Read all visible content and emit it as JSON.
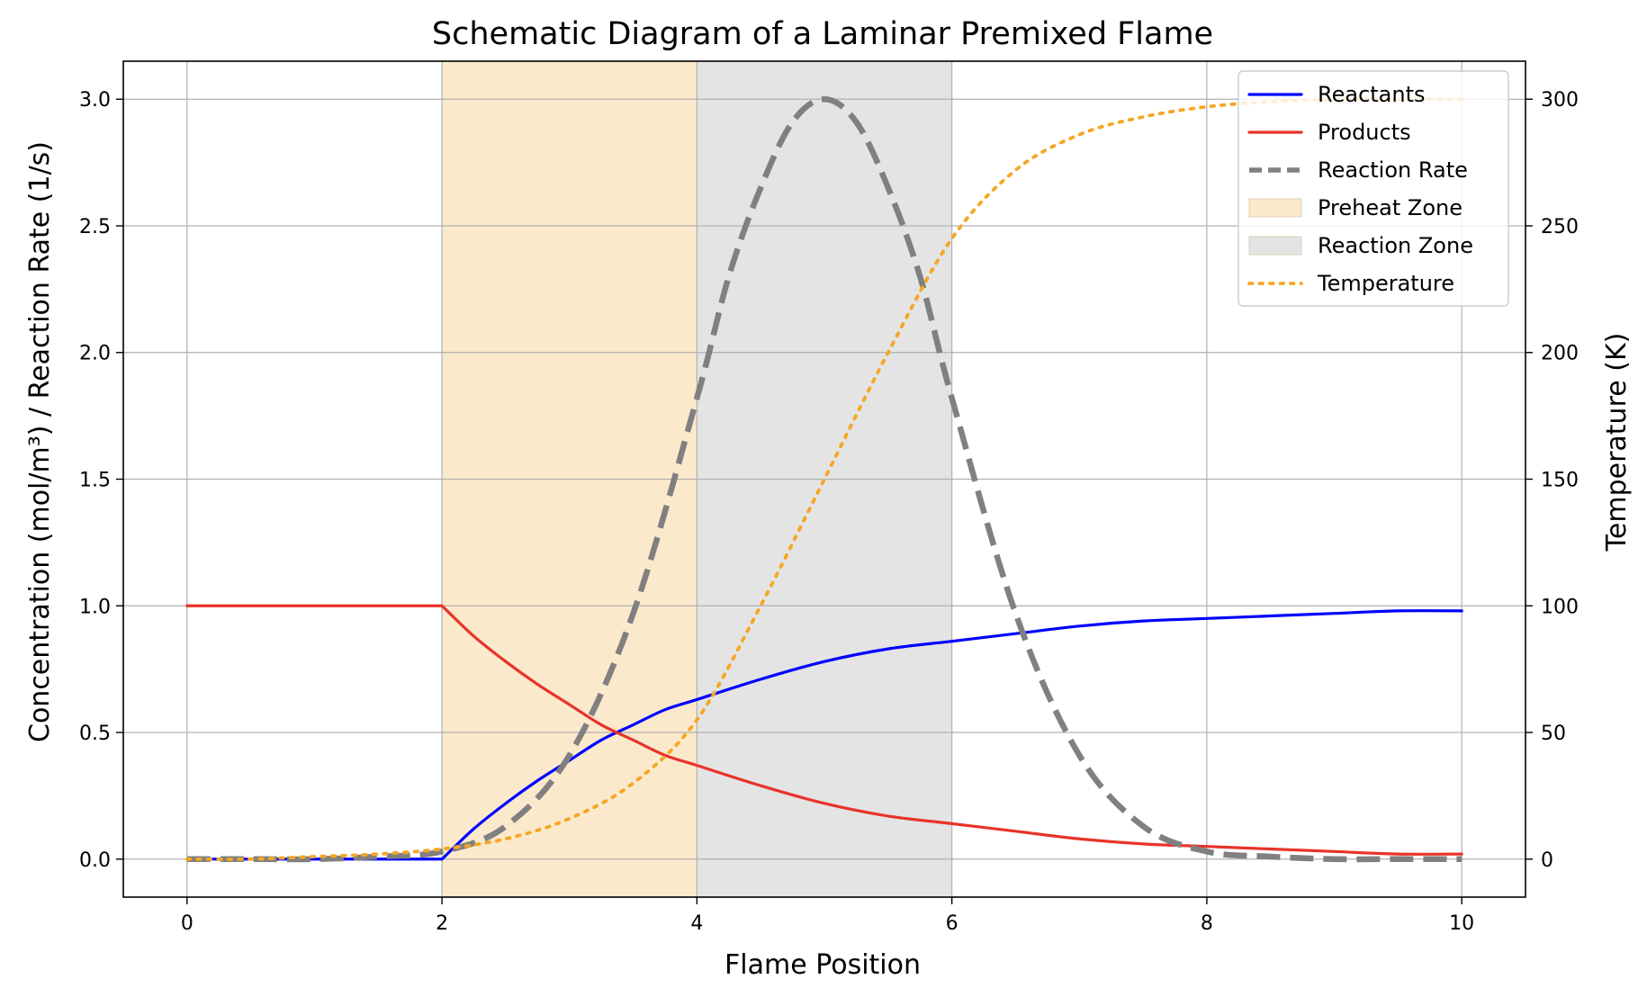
{
  "chart_data": {
    "type": "line",
    "title": "Schematic Diagram of a Laminar Premixed Flame",
    "xlabel": "Flame Position",
    "ylabel": "Concentration (mol/m³) / Reaction Rate (1/s)",
    "y2label": "Temperature (K)",
    "xlim": [
      -0.5,
      10.5
    ],
    "ylim": [
      -0.15,
      3.15
    ],
    "y2lim": [
      -15,
      315
    ],
    "x_ticks": [
      0,
      2,
      4,
      6,
      8,
      10
    ],
    "x_tick_labels": [
      "0",
      "2",
      "4",
      "6",
      "8",
      "10"
    ],
    "y_ticks": [
      0.0,
      0.5,
      1.0,
      1.5,
      2.0,
      2.5,
      3.0
    ],
    "y_tick_labels": [
      "0.0",
      "0.5",
      "1.0",
      "1.5",
      "2.0",
      "2.5",
      "3.0"
    ],
    "y2_ticks": [
      0,
      50,
      100,
      150,
      200,
      250,
      300
    ],
    "y2_tick_labels": [
      "0",
      "50",
      "100",
      "150",
      "200",
      "250",
      "300"
    ],
    "grid": true,
    "legend_position": "top-right",
    "zones": [
      {
        "name": "Preheat Zone",
        "x_start": 2,
        "x_end": 4,
        "color": "#fbe9cc"
      },
      {
        "name": "Reaction Zone",
        "x_start": 4,
        "x_end": 6,
        "color": "#e4e4e4"
      }
    ],
    "series": [
      {
        "name": "Reactants",
        "axis": "left",
        "color": "#0000ff",
        "style": "solid",
        "x": [
          0,
          0.5,
          1,
          1.5,
          2,
          2.25,
          2.5,
          2.75,
          3,
          3.25,
          3.5,
          3.75,
          4,
          4.5,
          5,
          5.5,
          6,
          6.5,
          7,
          7.5,
          8,
          8.5,
          9,
          9.5,
          10
        ],
        "values": [
          0.0,
          0.0,
          0.0,
          0.0,
          0.0,
          0.12,
          0.22,
          0.31,
          0.39,
          0.47,
          0.53,
          0.59,
          0.63,
          0.71,
          0.78,
          0.83,
          0.86,
          0.89,
          0.92,
          0.94,
          0.95,
          0.96,
          0.97,
          0.98,
          0.98
        ]
      },
      {
        "name": "Products",
        "axis": "left",
        "color": "#e8332a",
        "style": "solid",
        "x": [
          0,
          0.5,
          1,
          1.5,
          2,
          2.25,
          2.5,
          2.75,
          3,
          3.25,
          3.5,
          3.75,
          4,
          4.5,
          5,
          5.5,
          6,
          6.5,
          7,
          7.5,
          8,
          8.5,
          9,
          9.5,
          10
        ],
        "values": [
          1.0,
          1.0,
          1.0,
          1.0,
          1.0,
          0.88,
          0.78,
          0.69,
          0.61,
          0.53,
          0.47,
          0.41,
          0.37,
          0.29,
          0.22,
          0.17,
          0.14,
          0.11,
          0.08,
          0.06,
          0.05,
          0.04,
          0.03,
          0.02,
          0.02
        ]
      },
      {
        "name": "Reaction Rate",
        "axis": "left",
        "color": "#808080",
        "style": "dashed",
        "x": [
          0,
          0.5,
          1,
          1.5,
          2,
          2.5,
          3,
          3.5,
          4,
          4.25,
          4.5,
          4.75,
          5,
          5.25,
          5.5,
          5.75,
          6,
          6.5,
          7,
          7.5,
          8,
          8.5,
          9,
          9.5,
          10
        ],
        "values": [
          0.0,
          0.0,
          0.0,
          0.01,
          0.03,
          0.13,
          0.41,
          0.97,
          1.82,
          2.3,
          2.65,
          2.91,
          3.0,
          2.91,
          2.65,
          2.3,
          1.82,
          0.97,
          0.41,
          0.13,
          0.03,
          0.01,
          0.0,
          0.0,
          0.0
        ]
      },
      {
        "name": "Temperature",
        "axis": "right",
        "color": "#f5a623",
        "style": "dotted",
        "x": [
          0,
          0.5,
          1,
          1.5,
          2,
          2.5,
          3,
          3.5,
          4,
          4.5,
          5,
          5.5,
          6,
          6.5,
          7,
          7.5,
          8,
          8.5,
          9,
          9.5,
          10
        ],
        "values": [
          0,
          0,
          1,
          2,
          4,
          8,
          16,
          30,
          55,
          100,
          150,
          200,
          245,
          272,
          286,
          293,
          297,
          299,
          300,
          300,
          300
        ]
      }
    ],
    "legend": [
      {
        "label": "Reactants",
        "kind": "line",
        "color": "#0000ff",
        "style": "solid"
      },
      {
        "label": "Products",
        "kind": "line",
        "color": "#e8332a",
        "style": "solid"
      },
      {
        "label": "Reaction Rate",
        "kind": "line",
        "color": "#808080",
        "style": "dashed"
      },
      {
        "label": "Preheat Zone",
        "kind": "patch",
        "color": "#fbe9cc"
      },
      {
        "label": "Reaction Zone",
        "kind": "patch",
        "color": "#e4e4e4"
      },
      {
        "label": "Temperature",
        "kind": "line",
        "color": "#f5a623",
        "style": "dotted"
      }
    ]
  }
}
